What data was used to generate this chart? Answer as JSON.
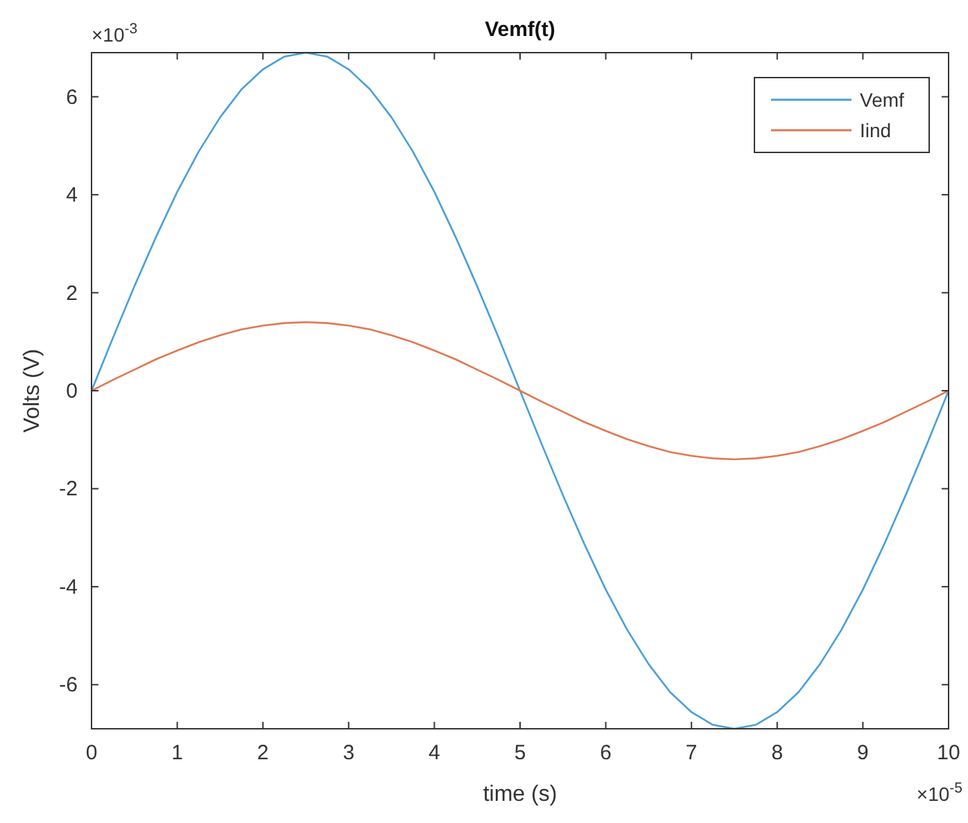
{
  "chart_data": {
    "type": "line",
    "title": "Vemf(t)",
    "xlabel": "time (s)",
    "ylabel": "Volts (V)",
    "annotations": [
      "×10$^{-3}$",
      "×10$^{-5}$"
    ],
    "x": [
      0,
      0.25,
      0.5,
      0.75,
      1,
      1.25,
      1.5,
      1.75,
      2,
      2.25,
      2.5,
      2.75,
      3,
      3.25,
      3.5,
      3.75,
      4,
      4.25,
      4.5,
      4.75,
      5,
      5.25,
      5.5,
      5.75,
      6,
      6.25,
      6.5,
      6.75,
      7,
      7.25,
      7.5,
      7.75,
      8,
      8.25,
      8.5,
      8.75,
      9,
      9.25,
      9.5,
      9.75,
      10
    ],
    "series": [
      {
        "name": "Vemf",
        "color": "#4a9fd8",
        "values": [
          0,
          1.08,
          2.13,
          3.13,
          4.06,
          4.88,
          5.58,
          6.15,
          6.56,
          6.82,
          6.9,
          6.82,
          6.56,
          6.15,
          5.58,
          4.88,
          4.06,
          3.13,
          2.13,
          1.08,
          0,
          -1.08,
          -2.13,
          -3.13,
          -4.06,
          -4.88,
          -5.58,
          -6.15,
          -6.56,
          -6.82,
          -6.9,
          -6.82,
          -6.56,
          -6.15,
          -5.58,
          -4.88,
          -4.06,
          -3.13,
          -2.13,
          -1.08,
          0
        ]
      },
      {
        "name": "Iind",
        "color": "#e07850",
        "values": [
          0,
          0.22,
          0.43,
          0.64,
          0.82,
          0.99,
          1.13,
          1.25,
          1.33,
          1.38,
          1.4,
          1.38,
          1.33,
          1.25,
          1.13,
          0.99,
          0.82,
          0.64,
          0.43,
          0.22,
          0,
          -0.22,
          -0.43,
          -0.64,
          -0.82,
          -0.99,
          -1.13,
          -1.25,
          -1.33,
          -1.38,
          -1.4,
          -1.38,
          -1.33,
          -1.25,
          -1.13,
          -0.99,
          -0.82,
          -0.64,
          -0.43,
          -0.22,
          0
        ]
      }
    ],
    "xlim": [
      0,
      10
    ],
    "xticks": [
      0,
      1,
      2,
      3,
      4,
      5,
      6,
      7,
      8,
      9,
      10
    ],
    "ylim": [
      -6.9,
      6.9
    ],
    "yticks": [
      -6,
      -4,
      -2,
      0,
      2,
      4,
      6
    ],
    "grid": false,
    "legend": "top right",
    "marker": "none",
    "line_style": "solid"
  }
}
